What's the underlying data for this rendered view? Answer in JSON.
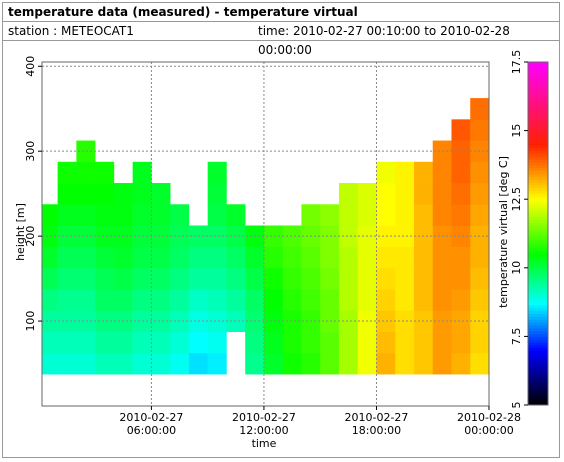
{
  "header": {
    "title": "temperature data (measured) - temperature virtual",
    "station": "station : METEOCAT1",
    "time_range": "time: 2010-02-27 00:10:00 to 2010-02-28 00:00:00"
  },
  "chart_data": {
    "type": "heatmap",
    "xlabel": "time",
    "ylabel": "height [m]",
    "colorbar_label": "temperature virtual [deg C]",
    "xlim": [
      0.1667,
      24
    ],
    "ylim": [
      0,
      405
    ],
    "xticks": [
      {
        "value": 6,
        "label": "2010-02-27 06:00:00"
      },
      {
        "value": 12,
        "label": "2010-02-27 12:00:00"
      },
      {
        "value": 18,
        "label": "2010-02-27 18:00:00"
      },
      {
        "value": 24,
        "label": "2010-02-28 00:00:00"
      }
    ],
    "yticks": [
      100,
      200,
      300,
      400
    ],
    "grid": true,
    "clim": [
      5,
      17.5
    ],
    "cticks": [
      5,
      7.5,
      10,
      12.5,
      15,
      17.5
    ],
    "colorscale": [
      [
        5,
        "#000000"
      ],
      [
        7,
        "#0000ff"
      ],
      [
        8.7,
        "#00ffff"
      ],
      [
        10.5,
        "#00ff00"
      ],
      [
        12.5,
        "#ffff00"
      ],
      [
        14.5,
        "#ff2000"
      ],
      [
        17.5,
        "#ff00ff"
      ]
    ],
    "x_edges": [
      0.1667,
      1,
      2,
      3,
      4,
      5,
      6,
      7,
      8,
      9,
      10,
      11,
      12,
      13,
      14,
      15,
      16,
      17,
      18,
      19,
      20,
      21,
      22,
      23,
      24
    ],
    "y_edges": [
      37.5,
      62.5,
      87.5,
      112.5,
      137.5,
      162.5,
      187.5,
      212.5,
      237.5,
      262.5,
      287.5,
      312.5,
      337.5,
      362.5
    ],
    "z": [
      [
        9.0,
        9.0,
        9.0,
        9.2,
        9.2,
        9.0,
        9.0,
        8.8,
        8.5,
        8.6,
        null,
        9.5,
        10.2,
        10.6,
        10.8,
        11.2,
        11.8,
        12.4,
        13.2,
        12.8,
        13.0,
        13.4,
        13.2,
        12.8
      ],
      [
        9.2,
        9.2,
        9.2,
        9.4,
        9.4,
        9.2,
        9.2,
        9.0,
        8.7,
        8.8,
        null,
        9.6,
        10.3,
        10.7,
        10.9,
        11.2,
        11.8,
        12.4,
        13.1,
        12.8,
        13.0,
        13.4,
        13.3,
        12.9
      ],
      [
        9.4,
        9.4,
        9.4,
        9.6,
        9.6,
        9.4,
        9.4,
        9.2,
        8.9,
        9.0,
        9.2,
        9.7,
        10.4,
        10.7,
        10.9,
        11.3,
        11.8,
        12.4,
        13.0,
        12.8,
        13.0,
        13.4,
        13.3,
        12.9
      ],
      [
        9.6,
        9.5,
        9.5,
        9.8,
        9.8,
        9.6,
        9.6,
        9.4,
        9.1,
        9.2,
        9.4,
        9.8,
        10.5,
        10.8,
        11.0,
        11.3,
        11.9,
        12.3,
        12.9,
        12.7,
        13.1,
        13.5,
        13.4,
        13.0
      ],
      [
        9.9,
        9.7,
        9.7,
        9.9,
        10.0,
        9.8,
        9.8,
        9.6,
        9.4,
        9.4,
        9.6,
        10.0,
        10.6,
        10.9,
        11.1,
        11.4,
        11.9,
        12.3,
        12.8,
        12.7,
        13.1,
        13.5,
        13.5,
        13.1
      ],
      [
        10.2,
        9.9,
        9.9,
        10.1,
        10.2,
        10.0,
        10.0,
        9.8,
        9.6,
        9.6,
        9.8,
        10.2,
        10.8,
        11.0,
        11.2,
        11.5,
        11.9,
        12.3,
        12.7,
        12.7,
        13.1,
        13.5,
        13.5,
        13.2
      ],
      [
        10.4,
        10.1,
        10.1,
        10.3,
        10.3,
        10.1,
        10.1,
        9.9,
        9.8,
        9.8,
        10.0,
        10.4,
        10.9,
        11.1,
        11.3,
        11.5,
        12.0,
        12.3,
        12.6,
        12.6,
        13.1,
        13.5,
        13.6,
        13.2
      ],
      [
        10.5,
        10.3,
        10.3,
        10.4,
        10.4,
        10.2,
        10.2,
        10.0,
        null,
        10.0,
        10.2,
        null,
        null,
        null,
        11.4,
        11.6,
        12.0,
        12.2,
        12.5,
        12.6,
        13.1,
        13.6,
        13.7,
        13.3
      ],
      [
        null,
        10.5,
        10.5,
        10.5,
        10.4,
        10.3,
        10.2,
        null,
        null,
        10.1,
        null,
        null,
        null,
        null,
        null,
        null,
        12.0,
        12.2,
        12.5,
        12.6,
        13.2,
        13.6,
        13.8,
        13.4
      ],
      [
        null,
        10.6,
        10.6,
        10.6,
        null,
        10.3,
        null,
        null,
        null,
        10.2,
        null,
        null,
        null,
        null,
        null,
        null,
        null,
        null,
        12.4,
        12.6,
        13.2,
        13.6,
        13.9,
        13.5
      ],
      [
        null,
        null,
        10.8,
        null,
        null,
        null,
        null,
        null,
        null,
        null,
        null,
        null,
        null,
        null,
        null,
        null,
        null,
        null,
        null,
        null,
        null,
        13.6,
        13.9,
        13.6
      ],
      [
        null,
        null,
        null,
        null,
        null,
        null,
        null,
        null,
        null,
        null,
        null,
        null,
        null,
        null,
        null,
        null,
        null,
        null,
        null,
        null,
        null,
        null,
        14.0,
        13.7
      ],
      [
        null,
        null,
        null,
        null,
        null,
        null,
        null,
        null,
        null,
        null,
        null,
        null,
        null,
        null,
        null,
        null,
        null,
        null,
        null,
        null,
        null,
        null,
        null,
        13.8
      ]
    ]
  }
}
